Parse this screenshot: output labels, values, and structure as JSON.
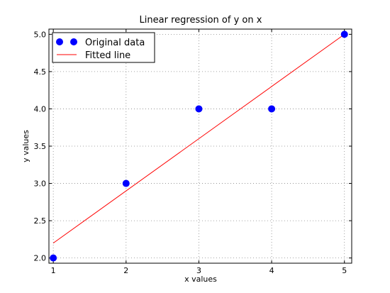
{
  "chart_data": {
    "type": "scatter",
    "title": "Linear regression of y on x",
    "xlabel": "x values",
    "ylabel": "y values",
    "xlim": [
      0.94,
      5.1
    ],
    "ylim": [
      1.93,
      5.07
    ],
    "x_ticks": [
      "1",
      "2",
      "3",
      "4",
      "5"
    ],
    "y_ticks": [
      "2.0",
      "2.5",
      "3.0",
      "3.5",
      "4.0",
      "4.5",
      "5.0"
    ],
    "grid": true,
    "legend_position": "top-left",
    "series": [
      {
        "name": "Original data",
        "kind": "points",
        "color": "#0000ff",
        "x": [
          1,
          2,
          3,
          4,
          5
        ],
        "y": [
          2.0,
          3.0,
          4.0,
          4.0,
          5.0
        ]
      },
      {
        "name": "Fitted line",
        "kind": "line",
        "color": "#ff0000",
        "x": [
          1,
          5
        ],
        "y": [
          2.2,
          5.0
        ]
      }
    ]
  }
}
